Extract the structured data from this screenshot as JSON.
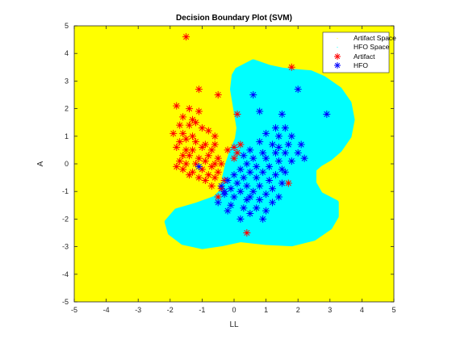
{
  "chart_data": {
    "type": "scatter",
    "title": "Decision Boundary Plot (SVM)",
    "xlabel": "LL",
    "ylabel": "A",
    "xlim": [
      -5,
      5
    ],
    "ylim": [
      -5,
      5
    ],
    "xticks": [
      -5,
      -4,
      -3,
      -2,
      -1,
      0,
      1,
      2,
      3,
      4,
      5
    ],
    "yticks": [
      -5,
      -4,
      -3,
      -2,
      -1,
      0,
      1,
      2,
      3,
      4,
      5
    ],
    "grid": false,
    "legend_position": "top-right",
    "regions": [
      {
        "name": "Artifact Space",
        "color": "#ffff00"
      },
      {
        "name": "HFO Space",
        "color": "#00ffff",
        "boundary": [
          [
            0.1,
            3.4
          ],
          [
            0.6,
            3.7
          ],
          [
            1.1,
            3.5
          ],
          [
            1.5,
            3.4
          ],
          [
            1.9,
            3.35
          ],
          [
            2.4,
            3.3
          ],
          [
            2.8,
            3.1
          ],
          [
            3.3,
            2.7
          ],
          [
            3.6,
            2.2
          ],
          [
            3.7,
            1.6
          ],
          [
            3.6,
            1.0
          ],
          [
            3.3,
            0.5
          ],
          [
            3.0,
            0.2
          ],
          [
            2.7,
            0.0
          ],
          [
            2.5,
            -0.2
          ],
          [
            2.5,
            -0.7
          ],
          [
            2.7,
            -1.1
          ],
          [
            3.2,
            -1.4
          ],
          [
            3.2,
            -1.9
          ],
          [
            3.0,
            -2.3
          ],
          [
            2.5,
            -2.7
          ],
          [
            1.8,
            -2.9
          ],
          [
            1.0,
            -2.85
          ],
          [
            0.2,
            -2.75
          ],
          [
            -0.4,
            -2.9
          ],
          [
            -1.0,
            -3.0
          ],
          [
            -1.6,
            -2.85
          ],
          [
            -2.0,
            -2.5
          ],
          [
            -2.1,
            -2.1
          ],
          [
            -1.8,
            -1.7
          ],
          [
            -1.2,
            -1.5
          ],
          [
            -0.6,
            -1.25
          ],
          [
            -0.3,
            -0.9
          ],
          [
            -0.3,
            -0.5
          ],
          [
            -0.2,
            0.0
          ],
          [
            -0.05,
            0.5
          ],
          [
            0.1,
            0.9
          ],
          [
            0.15,
            1.3
          ],
          [
            0.05,
            2.0
          ],
          [
            -0.05,
            2.7
          ],
          [
            0.0,
            3.2
          ]
        ]
      }
    ],
    "series": [
      {
        "name": "Artifact",
        "marker": "*",
        "color": "#ff0000",
        "points": [
          [
            -1.5,
            4.6
          ],
          [
            1.8,
            3.5
          ],
          [
            -1.1,
            2.7
          ],
          [
            -0.5,
            2.5
          ],
          [
            -1.8,
            2.1
          ],
          [
            -1.4,
            2.0
          ],
          [
            -1.1,
            1.9
          ],
          [
            -1.6,
            1.7
          ],
          [
            -1.3,
            1.6
          ],
          [
            0.1,
            1.8
          ],
          [
            -1.7,
            1.4
          ],
          [
            -1.4,
            1.4
          ],
          [
            -1.2,
            1.5
          ],
          [
            -1.0,
            1.3
          ],
          [
            -0.8,
            1.2
          ],
          [
            -1.9,
            1.1
          ],
          [
            -1.6,
            1.1
          ],
          [
            -1.3,
            1.0
          ],
          [
            -0.6,
            1.0
          ],
          [
            -1.7,
            0.8
          ],
          [
            -1.5,
            0.9
          ],
          [
            -1.2,
            0.8
          ],
          [
            -0.9,
            0.7
          ],
          [
            -0.6,
            0.7
          ],
          [
            0.2,
            0.7
          ],
          [
            -1.8,
            0.6
          ],
          [
            -1.5,
            0.5
          ],
          [
            -1.3,
            0.5
          ],
          [
            -1.0,
            0.6
          ],
          [
            -0.7,
            0.5
          ],
          [
            -0.2,
            0.5
          ],
          [
            0.0,
            0.6
          ],
          [
            0.1,
            0.4
          ],
          [
            -1.6,
            0.3
          ],
          [
            -1.4,
            0.3
          ],
          [
            -1.1,
            0.2
          ],
          [
            -0.8,
            0.3
          ],
          [
            -0.5,
            0.2
          ],
          [
            -1.7,
            0.1
          ],
          [
            -1.5,
            0.0
          ],
          [
            -1.2,
            0.0
          ],
          [
            -0.9,
            0.1
          ],
          [
            -0.6,
            0.0
          ],
          [
            -1.8,
            -0.1
          ],
          [
            -1.6,
            -0.2
          ],
          [
            -1.3,
            -0.3
          ],
          [
            -1.0,
            -0.2
          ],
          [
            -0.7,
            -0.1
          ],
          [
            -0.4,
            0.0
          ],
          [
            -1.4,
            -0.4
          ],
          [
            -1.1,
            -0.5
          ],
          [
            -0.8,
            -0.4
          ],
          [
            -0.5,
            -0.3
          ],
          [
            -0.9,
            -0.6
          ],
          [
            -0.6,
            -0.5
          ],
          [
            -0.3,
            -0.6
          ],
          [
            -0.7,
            -0.8
          ],
          [
            -0.4,
            -0.9
          ],
          [
            -0.5,
            -1.2
          ],
          [
            0.0,
            0.2
          ],
          [
            1.7,
            -0.7
          ],
          [
            0.4,
            -2.5
          ]
        ]
      },
      {
        "name": "HFO",
        "marker": "*",
        "color": "#0000ff",
        "points": [
          [
            0.6,
            2.5
          ],
          [
            2.0,
            2.7
          ],
          [
            0.8,
            1.9
          ],
          [
            2.9,
            1.8
          ],
          [
            1.5,
            1.8
          ],
          [
            1.3,
            1.3
          ],
          [
            1.6,
            1.3
          ],
          [
            1.0,
            1.1
          ],
          [
            1.4,
            1.0
          ],
          [
            1.8,
            1.0
          ],
          [
            0.8,
            0.8
          ],
          [
            1.2,
            0.7
          ],
          [
            1.7,
            0.7
          ],
          [
            2.1,
            0.7
          ],
          [
            1.4,
            0.6
          ],
          [
            0.5,
            0.5
          ],
          [
            0.9,
            0.4
          ],
          [
            1.3,
            0.4
          ],
          [
            1.6,
            0.4
          ],
          [
            2.0,
            0.4
          ],
          [
            2.2,
            0.2
          ],
          [
            0.3,
            0.3
          ],
          [
            0.6,
            0.2
          ],
          [
            1.0,
            0.2
          ],
          [
            1.4,
            0.1
          ],
          [
            1.8,
            0.1
          ],
          [
            0.4,
            0.0
          ],
          [
            0.7,
            -0.1
          ],
          [
            1.1,
            -0.1
          ],
          [
            1.5,
            -0.2
          ],
          [
            0.2,
            -0.2
          ],
          [
            0.5,
            -0.3
          ],
          [
            0.9,
            -0.3
          ],
          [
            1.3,
            -0.4
          ],
          [
            1.6,
            -0.3
          ],
          [
            0.0,
            -0.4
          ],
          [
            0.3,
            -0.5
          ],
          [
            0.7,
            -0.5
          ],
          [
            1.1,
            -0.6
          ],
          [
            1.5,
            -0.7
          ],
          [
            -0.2,
            -0.6
          ],
          [
            0.1,
            -0.7
          ],
          [
            0.4,
            -0.8
          ],
          [
            0.8,
            -0.8
          ],
          [
            1.2,
            -0.9
          ],
          [
            -0.4,
            -0.8
          ],
          [
            -0.1,
            -0.9
          ],
          [
            0.2,
            -1.0
          ],
          [
            0.6,
            -1.0
          ],
          [
            1.0,
            -1.1
          ],
          [
            1.4,
            -1.2
          ],
          [
            -0.3,
            -1.1
          ],
          [
            0.0,
            -1.2
          ],
          [
            0.4,
            -1.3
          ],
          [
            0.8,
            -1.3
          ],
          [
            1.2,
            -1.4
          ],
          [
            -0.5,
            -1.4
          ],
          [
            -0.1,
            -1.5
          ],
          [
            0.3,
            -1.6
          ],
          [
            0.7,
            -1.6
          ],
          [
            1.0,
            -1.7
          ],
          [
            -0.2,
            -1.7
          ],
          [
            0.5,
            -1.8
          ],
          [
            0.9,
            -2.0
          ],
          [
            0.2,
            -2.0
          ],
          [
            -0.3,
            -1.0
          ],
          [
            -1.1,
            -0.1
          ],
          [
            0.5,
            -1.2
          ]
        ]
      }
    ]
  }
}
